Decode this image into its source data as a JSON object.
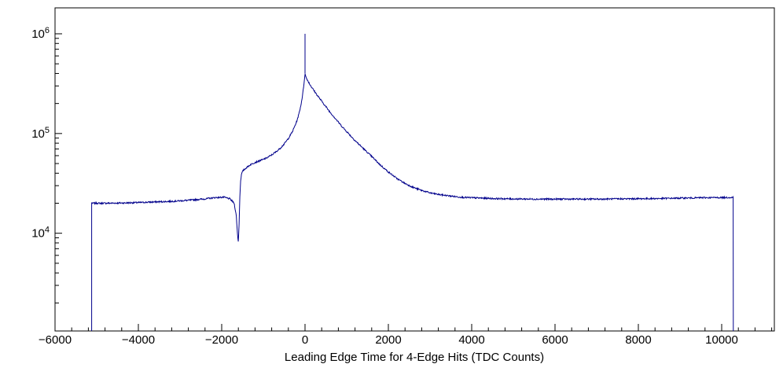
{
  "window": {
    "background": "#ffffff"
  },
  "chart_data": {
    "type": "line",
    "title": "",
    "xlabel": "Leading Edge Time for 4-Edge Hits (TDC Counts)",
    "ylabel": "",
    "x_range": [
      -6000,
      11264
    ],
    "y_range_log10": [
      3.02,
      6.26
    ],
    "y_scale": "log",
    "grid": false,
    "legend": false,
    "x_major_ticks": [
      -6000,
      -4000,
      -2000,
      0,
      2000,
      4000,
      6000,
      8000,
      10000
    ],
    "x_tick_labels": [
      "−6000",
      "−4000",
      "−2000",
      "0",
      "2000",
      "4000",
      "6000",
      "8000",
      "10000"
    ],
    "x_minor_tick_step": 400,
    "y_major_ticks": [
      {
        "exponent": 4,
        "label": "10^4"
      },
      {
        "exponent": 5,
        "label": "10^5"
      },
      {
        "exponent": 6,
        "label": "10^6"
      }
    ],
    "colors": {
      "line": "#00008b",
      "axis": "#000000",
      "background": "#ffffff"
    },
    "series": [
      {
        "name": "leading-edge-time-4edge-hits",
        "left_edge_x": -5120,
        "right_edge_x": 10280,
        "spike": {
          "x": 0,
          "top": 1000000
        },
        "points": [
          [
            -5120,
            20000
          ],
          [
            -4800,
            20000
          ],
          [
            -4400,
            20100
          ],
          [
            -4000,
            20300
          ],
          [
            -3600,
            20600
          ],
          [
            -3200,
            20900
          ],
          [
            -2800,
            21400
          ],
          [
            -2400,
            22100
          ],
          [
            -2150,
            22800
          ],
          [
            -1950,
            23000
          ],
          [
            -1800,
            22100
          ],
          [
            -1700,
            20000
          ],
          [
            -1650,
            15100
          ],
          [
            -1615,
            9100
          ],
          [
            -1600,
            8300
          ],
          [
            -1585,
            11200
          ],
          [
            -1565,
            22400
          ],
          [
            -1545,
            33900
          ],
          [
            -1520,
            39800
          ],
          [
            -1480,
            42700
          ],
          [
            -1400,
            45700
          ],
          [
            -1300,
            49000
          ],
          [
            -1200,
            51300
          ],
          [
            -1100,
            53100
          ],
          [
            -1000,
            55000
          ],
          [
            -900,
            57500
          ],
          [
            -800,
            61000
          ],
          [
            -700,
            65300
          ],
          [
            -600,
            70800
          ],
          [
            -500,
            78500
          ],
          [
            -400,
            89100
          ],
          [
            -300,
            104700
          ],
          [
            -200,
            131800
          ],
          [
            -150,
            154900
          ],
          [
            -100,
            190500
          ],
          [
            -60,
            239900
          ],
          [
            -30,
            302000
          ],
          [
            -10,
            363100
          ],
          [
            0,
            398100
          ],
          [
            15,
            375800
          ],
          [
            40,
            354800
          ],
          [
            80,
            331100
          ],
          [
            120,
            309000
          ],
          [
            160,
            291700
          ],
          [
            200,
            275400
          ],
          [
            300,
            239900
          ],
          [
            400,
            211300
          ],
          [
            500,
            186200
          ],
          [
            600,
            164100
          ],
          [
            700,
            146200
          ],
          [
            800,
            130300
          ],
          [
            900,
            116100
          ],
          [
            1000,
            104700
          ],
          [
            1200,
            85100
          ],
          [
            1400,
            70800
          ],
          [
            1600,
            58900
          ],
          [
            1800,
            48700
          ],
          [
            2000,
            41200
          ],
          [
            2200,
            35500
          ],
          [
            2400,
            31600
          ],
          [
            2600,
            28800
          ],
          [
            2800,
            26900
          ],
          [
            3000,
            25400
          ],
          [
            3200,
            24500
          ],
          [
            3400,
            23900
          ],
          [
            3600,
            23300
          ],
          [
            3800,
            22900
          ],
          [
            4000,
            22700
          ],
          [
            4500,
            22300
          ],
          [
            5000,
            22100
          ],
          [
            5500,
            22000
          ],
          [
            6000,
            22000
          ],
          [
            6500,
            22000
          ],
          [
            7000,
            22000
          ],
          [
            7500,
            22100
          ],
          [
            8000,
            22200
          ],
          [
            8500,
            22300
          ],
          [
            9000,
            22500
          ],
          [
            9500,
            22700
          ],
          [
            10000,
            22800
          ],
          [
            10280,
            22900
          ]
        ]
      }
    ]
  }
}
